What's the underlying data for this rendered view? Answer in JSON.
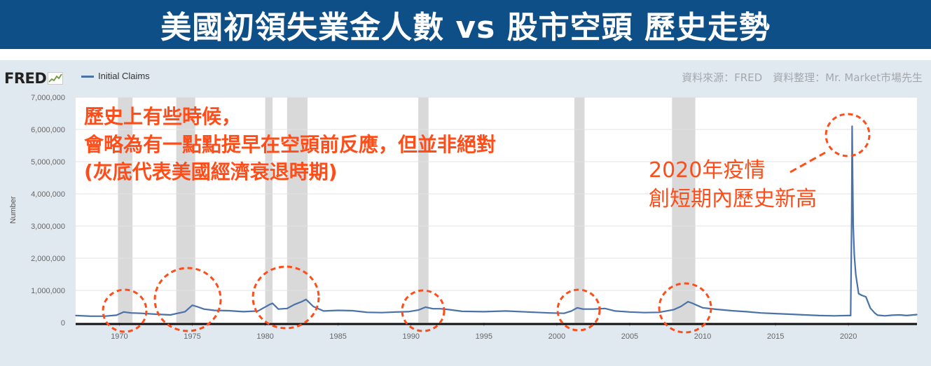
{
  "banner": {
    "title": "美國初領失業金人數 vs 股市空頭 歷史走勢"
  },
  "header": {
    "logo": "FRED",
    "legend": "Initial Claims",
    "source": "資料來源：FRED　資料整理：Mr. Market市場先生"
  },
  "annotations": {
    "left_lines": [
      "歷史上有些時候，",
      "會略為有一點點提早在空頭前反應，但並非絕對",
      "(灰底代表美國經濟衰退時期)"
    ],
    "right_lines": [
      "2020年疫情",
      "創短期內歷史新高"
    ]
  },
  "colors": {
    "banner": "#0d4f86",
    "series": "#4a72a8",
    "annotation": "#ff4d1a",
    "recession": "#d9d9d9"
  },
  "chart_data": {
    "type": "line",
    "title": "",
    "xlabel": "",
    "ylabel": "Number",
    "xlim": [
      1967,
      2024.7
    ],
    "ylim": [
      0,
      7000000
    ],
    "x_ticks": [
      "1970",
      "1975",
      "1980",
      "1985",
      "1990",
      "1995",
      "2000",
      "2005",
      "2010",
      "2015",
      "2020"
    ],
    "y_ticks": [
      "0",
      "1,000,000",
      "2,000,000",
      "3,000,000",
      "4,000,000",
      "5,000,000",
      "6,000,000",
      "7,000,000"
    ],
    "recessions": [
      [
        1969.9,
        1970.9
      ],
      [
        1973.9,
        1975.2
      ],
      [
        1980.0,
        1980.5
      ],
      [
        1981.5,
        1982.9
      ],
      [
        1990.5,
        1991.2
      ],
      [
        2001.2,
        2001.9
      ],
      [
        2007.9,
        2009.5
      ]
    ],
    "series": [
      {
        "name": "Initial Claims",
        "x": [
          1967.0,
          1968.0,
          1969.0,
          1969.8,
          1970.3,
          1970.8,
          1971.5,
          1972.5,
          1973.5,
          1974.5,
          1975.0,
          1975.3,
          1975.8,
          1976.5,
          1977.5,
          1978.5,
          1979.5,
          1980.3,
          1980.5,
          1980.9,
          1981.5,
          1982.0,
          1982.5,
          1982.8,
          1983.3,
          1984.0,
          1985.0,
          1986.0,
          1987.0,
          1988.0,
          1989.0,
          1989.8,
          1990.5,
          1991.0,
          1991.5,
          1992.0,
          1992.5,
          1993.5,
          1995.0,
          1996.5,
          1998.0,
          1999.5,
          2000.5,
          2001.0,
          2001.4,
          2001.8,
          2002.5,
          2003.3,
          2004.0,
          2005.0,
          2006.0,
          2007.0,
          2008.0,
          2008.5,
          2009.0,
          2009.3,
          2009.7,
          2010.0,
          2011.0,
          2012.0,
          2013.0,
          2014.0,
          2015.0,
          2016.0,
          2017.0,
          2018.0,
          2019.0,
          2020.0,
          2020.15,
          2020.22,
          2020.25,
          2020.29,
          2020.33,
          2020.4,
          2020.5,
          2020.7,
          2020.9,
          2021.2,
          2021.5,
          2021.8,
          2022.0,
          2022.5,
          2023.0,
          2023.5,
          2024.0,
          2024.7
        ],
        "values": [
          220000,
          200000,
          200000,
          230000,
          330000,
          300000,
          290000,
          260000,
          240000,
          340000,
          540000,
          500000,
          420000,
          380000,
          370000,
          340000,
          360000,
          560000,
          600000,
          420000,
          440000,
          560000,
          650000,
          720000,
          500000,
          360000,
          380000,
          370000,
          320000,
          310000,
          330000,
          340000,
          390000,
          480000,
          430000,
          430000,
          410000,
          350000,
          340000,
          360000,
          330000,
          300000,
          290000,
          360000,
          460000,
          420000,
          420000,
          440000,
          360000,
          330000,
          310000,
          320000,
          400000,
          500000,
          650000,
          600000,
          520000,
          460000,
          410000,
          370000,
          340000,
          300000,
          280000,
          260000,
          240000,
          220000,
          210000,
          220000,
          220000,
          3300000,
          6100000,
          4400000,
          3000000,
          2100000,
          1500000,
          900000,
          850000,
          800000,
          450000,
          300000,
          230000,
          210000,
          230000,
          240000,
          220000,
          250000
        ]
      }
    ]
  }
}
